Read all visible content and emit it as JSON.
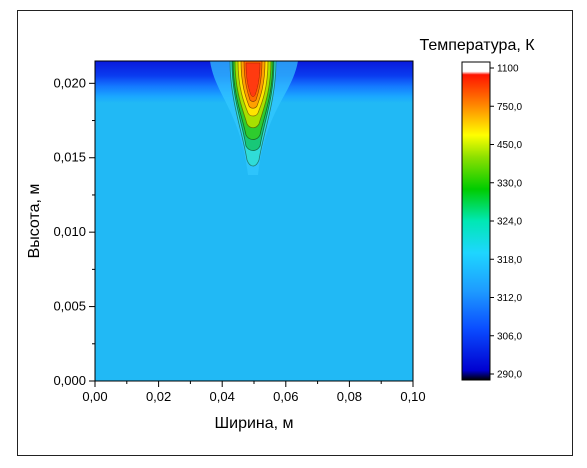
{
  "chart_data": {
    "type": "heatmap",
    "title": "",
    "xlabel": "Ширина, м",
    "ylabel": "Высота, м",
    "xlim": [
      0.0,
      0.1
    ],
    "ylim": [
      0.0,
      0.0215
    ],
    "x_ticks": [
      "0,00",
      "0,02",
      "0,04",
      "0,06",
      "0,08",
      "0,10"
    ],
    "y_ticks": [
      "0,000",
      "0,005",
      "0,010",
      "0,015",
      "0,020"
    ],
    "colorbar": {
      "title": "Температура, К",
      "levels": [
        "290,0",
        "306,0",
        "312,0",
        "318,0",
        "324,0",
        "330,0",
        "450,0",
        "750,0",
        "1100"
      ],
      "colors": [
        "#000000",
        "#0000d8",
        "#1a66ff",
        "#1ec8ff",
        "#00e6b4",
        "#00c800",
        "#7ddc00",
        "#ffff00",
        "#ff8c00",
        "#ff1e00",
        "#ffffff"
      ]
    },
    "field": {
      "background_temperature": 312,
      "top_cold_layer_temperature": 300,
      "hot_spot_center_x": 0.05,
      "peak_temperature": 1100
    },
    "grid": false,
    "legend_position": "right"
  }
}
